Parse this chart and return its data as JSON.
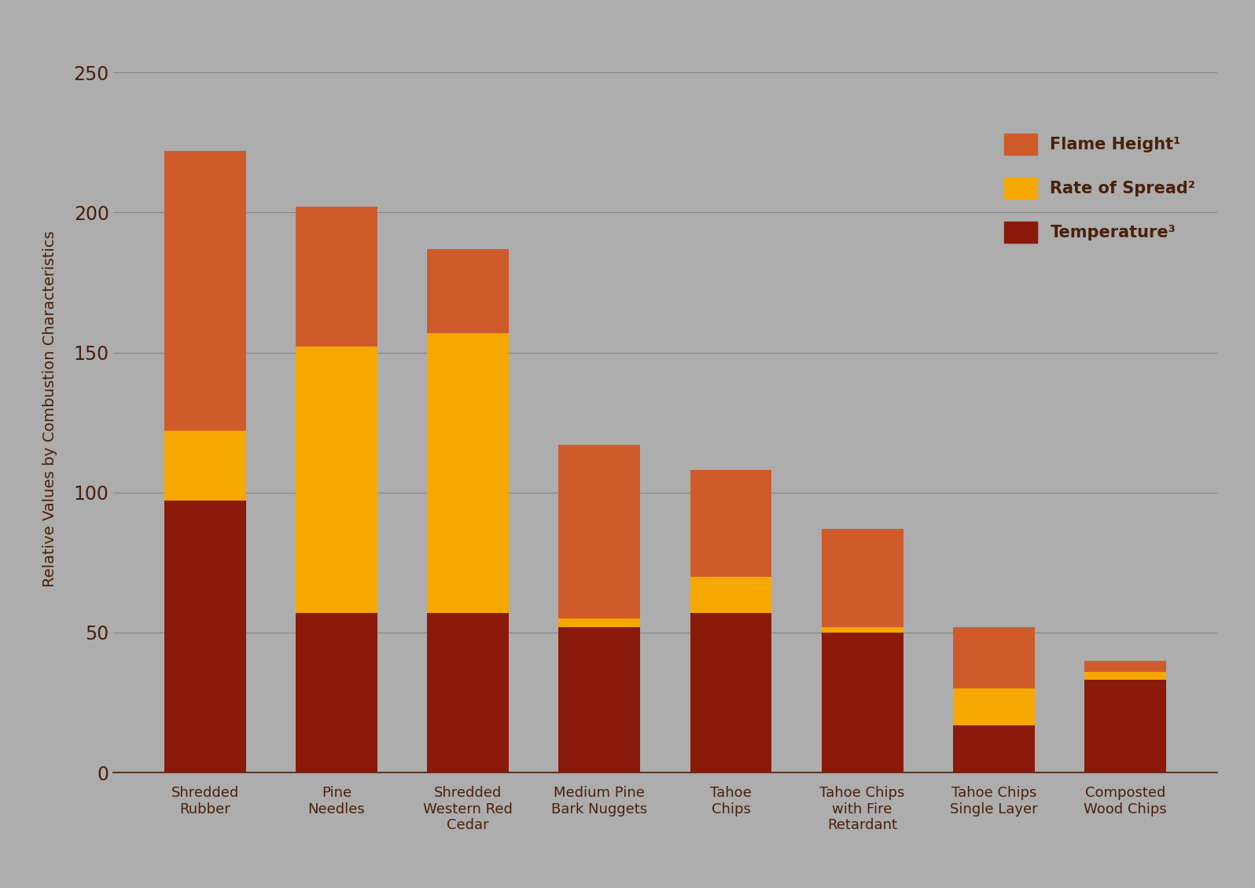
{
  "categories": [
    "Shredded\nRubber",
    "Pine\nNeedles",
    "Shredded\nWestern Red\nCedar",
    "Medium Pine\nBark Nuggets",
    "Tahoe\nChips",
    "Tahoe Chips\nwith Fire\nRetardant",
    "Tahoe Chips\nSingle Layer",
    "Composted\nWood Chips"
  ],
  "temperature": [
    97,
    57,
    57,
    52,
    57,
    50,
    17,
    33
  ],
  "rate_of_spread": [
    25,
    95,
    100,
    3,
    13,
    2,
    13,
    3
  ],
  "flame_height": [
    100,
    50,
    30,
    62,
    38,
    35,
    22,
    4
  ],
  "color_temperature": "#8B1A0A",
  "color_rate_of_spread": "#F5A800",
  "color_flame_height": "#D05B2A",
  "background_color": "#ADADAD",
  "ylabel": "Relative Values by Combustion Characteristics",
  "ylim": [
    0,
    260
  ],
  "yticks": [
    0,
    50,
    100,
    150,
    200,
    250
  ],
  "legend_labels": [
    "Flame Height¹",
    "Rate of Spread²",
    "Temperature³"
  ],
  "text_color": "#4A200A",
  "bar_width": 0.62,
  "grid_color": "#888888"
}
